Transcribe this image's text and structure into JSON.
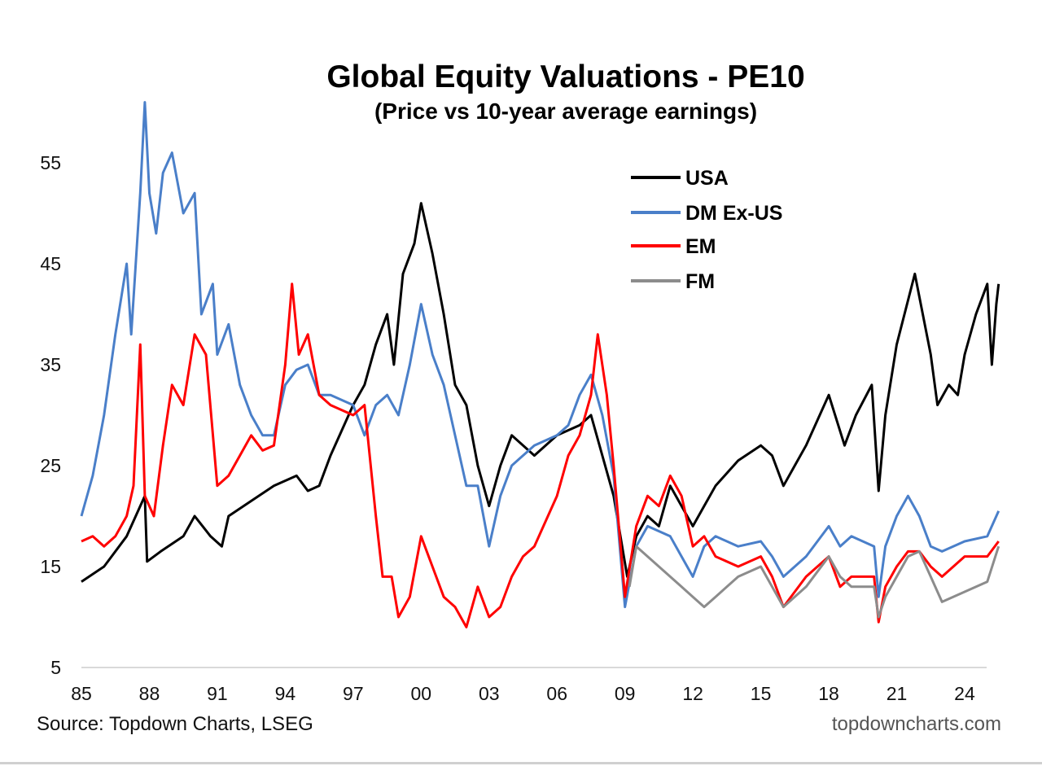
{
  "chart_data": {
    "type": "line",
    "title": "Global Equity Valuations - PE10",
    "subtitle": "(Price vs 10-year average earnings)",
    "xlabel": "",
    "ylabel": "",
    "xlim": [
      1985,
      2025.5
    ],
    "ylim": [
      5,
      62
    ],
    "x_ticks": [
      1985,
      1988,
      1991,
      1994,
      1997,
      2000,
      2003,
      2006,
      2009,
      2012,
      2015,
      2018,
      2021,
      2024
    ],
    "x_tick_labels": [
      "85",
      "88",
      "91",
      "94",
      "97",
      "00",
      "03",
      "06",
      "09",
      "12",
      "15",
      "18",
      "21",
      "24"
    ],
    "y_ticks": [
      5,
      15,
      25,
      35,
      45,
      55
    ],
    "y_tick_labels": [
      "5",
      "15",
      "25",
      "35",
      "45",
      "55"
    ],
    "grid": false,
    "legend_position": "top-right",
    "series": [
      {
        "name": "USA",
        "color": "#000000",
        "x": [
          1985,
          1986,
          1987,
          1987.8,
          1987.9,
          1988.5,
          1989.5,
          1990,
          1990.7,
          1991.2,
          1991.5,
          1992.5,
          1993.5,
          1994.5,
          1995,
          1995.5,
          1996,
          1996.5,
          1997,
          1997.5,
          1998,
          1998.5,
          1998.8,
          1999.2,
          1999.7,
          2000,
          2000.5,
          2001,
          2001.5,
          2002,
          2002.5,
          2003,
          2003.5,
          2004,
          2005,
          2006,
          2007,
          2007.5,
          2008,
          2008.5,
          2009.1,
          2009.5,
          2010,
          2010.5,
          2011,
          2011.5,
          2012,
          2012.5,
          2013,
          2014,
          2015,
          2015.5,
          2016,
          2016.5,
          2017,
          2018,
          2018.7,
          2019.2,
          2019.9,
          2020.2,
          2020.5,
          2021,
          2021.8,
          2022.5,
          2022.8,
          2023.3,
          2023.7,
          2024,
          2024.5,
          2025,
          2025.2,
          2025.4,
          2025.5
        ],
        "y": [
          13.5,
          15,
          18,
          22,
          15.5,
          16.5,
          18,
          20,
          18,
          17,
          20,
          21.5,
          23,
          24,
          22.5,
          23,
          26,
          28.5,
          31,
          33,
          37,
          40,
          35,
          44,
          47,
          51,
          46,
          40,
          33,
          31,
          25,
          21,
          25,
          28,
          26,
          28,
          29,
          30,
          26,
          22,
          14,
          18,
          20,
          19,
          23,
          21,
          19,
          21,
          23,
          25.5,
          27,
          26,
          23,
          25,
          27,
          32,
          27,
          30,
          33,
          22.5,
          30,
          37,
          44,
          36,
          31,
          33,
          32,
          36,
          40,
          43,
          35,
          41,
          43
        ]
      },
      {
        "name": "DM Ex-US",
        "color": "#4a7fc9",
        "x": [
          1985,
          1985.5,
          1986,
          1986.5,
          1987,
          1987.2,
          1987.6,
          1987.8,
          1988,
          1988.3,
          1988.6,
          1989,
          1989.5,
          1990,
          1990.3,
          1990.8,
          1991,
          1991.5,
          1992,
          1992.5,
          1993,
          1993.5,
          1994,
          1994.5,
          1995,
          1995.5,
          1996,
          1997,
          1997.5,
          1998,
          1998.5,
          1999,
          1999.5,
          2000,
          2000.5,
          2001,
          2001.5,
          2002,
          2002.5,
          2003,
          2003.5,
          2004,
          2005,
          2006,
          2006.5,
          2007,
          2007.5,
          2008,
          2008.5,
          2009,
          2009.5,
          2010,
          2011,
          2011.5,
          2012,
          2012.5,
          2013,
          2014,
          2015,
          2015.5,
          2016,
          2017,
          2018,
          2018.5,
          2019,
          2020,
          2020.2,
          2020.5,
          2021,
          2021.5,
          2022,
          2022.5,
          2023,
          2024,
          2025,
          2025.5
        ],
        "y": [
          20,
          24,
          30,
          38,
          45,
          38,
          52,
          61,
          52,
          48,
          54,
          56,
          50,
          52,
          40,
          43,
          36,
          39,
          33,
          30,
          28,
          28,
          33,
          34.5,
          35,
          32,
          32,
          31,
          28,
          31,
          32,
          30,
          35,
          41,
          36,
          33,
          28,
          23,
          23,
          17,
          22,
          25,
          27,
          28,
          29,
          32,
          34,
          30,
          24,
          11,
          17,
          19,
          18,
          16,
          14,
          17,
          18,
          17,
          17.5,
          16,
          14,
          16,
          19,
          17,
          18,
          17,
          12,
          17,
          20,
          22,
          20,
          17,
          16.5,
          17.5,
          18,
          20.5
        ]
      },
      {
        "name": "EM",
        "color": "#ff0000",
        "x": [
          1985,
          1985.5,
          1986,
          1986.5,
          1987,
          1987.3,
          1987.6,
          1987.8,
          1988.2,
          1988.6,
          1989,
          1989.5,
          1990,
          1990.5,
          1991,
          1991.5,
          1992,
          1992.5,
          1993,
          1993.5,
          1994,
          1994.3,
          1994.6,
          1995,
          1995.5,
          1996,
          1997,
          1997.5,
          1998,
          1998.3,
          1998.7,
          1999,
          1999.5,
          2000,
          2000.5,
          2001,
          2001.5,
          2002,
          2002.5,
          2003,
          2003.5,
          2004,
          2004.5,
          2005,
          2006,
          2006.5,
          2007,
          2007.5,
          2007.8,
          2008.2,
          2008.5,
          2009,
          2009.5,
          2010,
          2010.5,
          2011,
          2011.5,
          2012,
          2012.5,
          2013,
          2014,
          2015,
          2015.5,
          2016,
          2016.5,
          2017,
          2018,
          2018.5,
          2019,
          2020,
          2020.2,
          2020.5,
          2021,
          2021.5,
          2022,
          2022.5,
          2023,
          2024,
          2025,
          2025.5
        ],
        "y": [
          17.5,
          18,
          17,
          18,
          20,
          23,
          37,
          22,
          20,
          27,
          33,
          31,
          38,
          36,
          23,
          24,
          26,
          28,
          26.5,
          27,
          35,
          43,
          36,
          38,
          32,
          31,
          30,
          31,
          20,
          14,
          14,
          10,
          12,
          18,
          15,
          12,
          11,
          9,
          13,
          10,
          11,
          14,
          16,
          17,
          22,
          26,
          28,
          32,
          38,
          32,
          25,
          12,
          19,
          22,
          21,
          24,
          22,
          17,
          18,
          16,
          15,
          16,
          14,
          11,
          12.5,
          14,
          16,
          13,
          14,
          14,
          9.5,
          13,
          15,
          16.5,
          16.5,
          15,
          14,
          16,
          16,
          17.5
        ]
      },
      {
        "name": "FM",
        "color": "#8c8c8c",
        "x": [
          2009.2,
          2009.5,
          2010,
          2011,
          2011.5,
          2012,
          2012.5,
          2013,
          2014,
          2015,
          2015.5,
          2016,
          2017,
          2018,
          2018.5,
          2019,
          2020,
          2020.2,
          2020.5,
          2021,
          2021.5,
          2022,
          2022.5,
          2023,
          2024,
          2025,
          2025.5
        ],
        "y": [
          13,
          17,
          16,
          14,
          13,
          12,
          11,
          12,
          14,
          15,
          13,
          11,
          13,
          16,
          14,
          13,
          13,
          10,
          12,
          14,
          16,
          16.5,
          14,
          11.5,
          12.5,
          13.5,
          17
        ]
      }
    ]
  },
  "footer": {
    "source": "Source: Topdown Charts, LSEG",
    "watermark": "topdowncharts.com"
  }
}
